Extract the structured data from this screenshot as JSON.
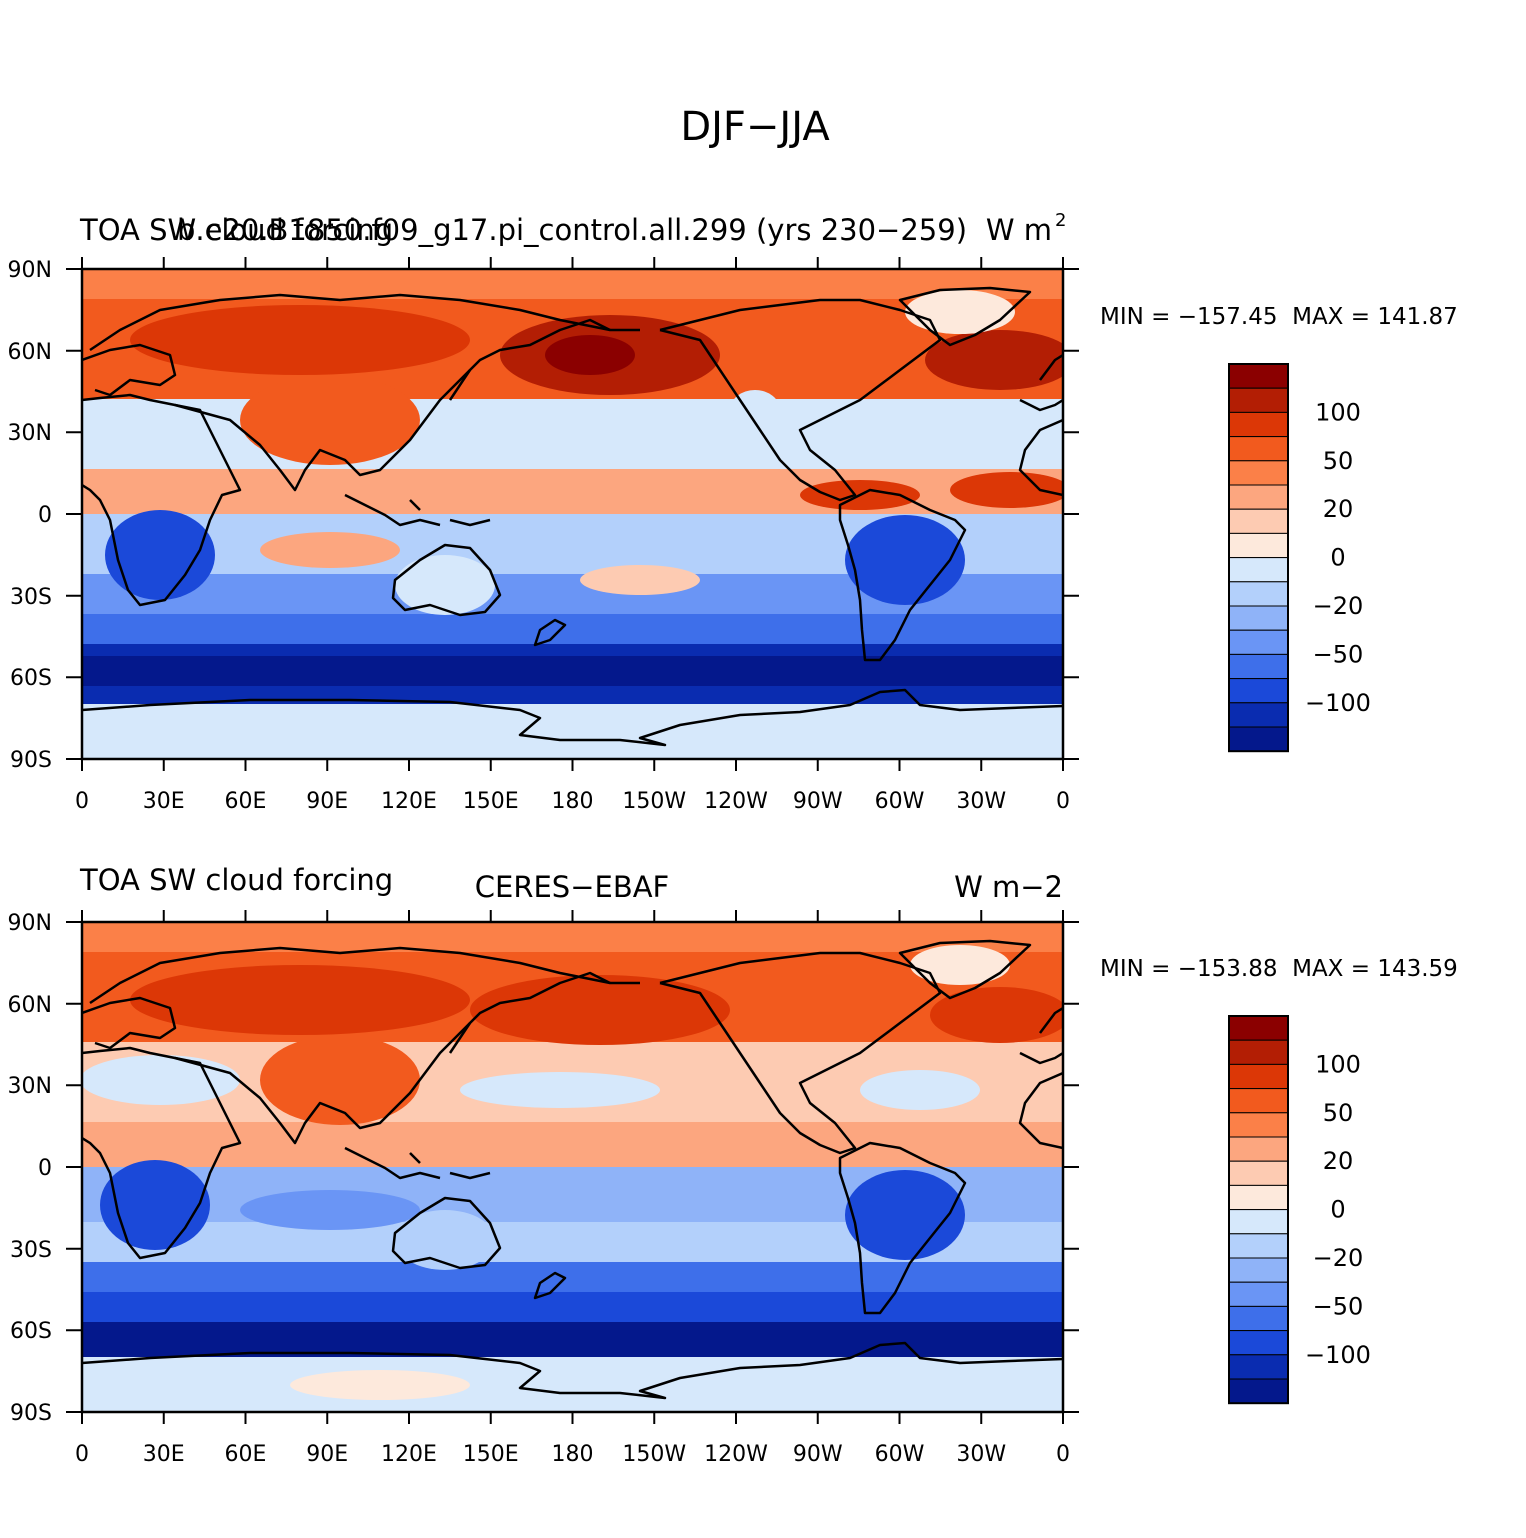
{
  "title": "DJF−JJA",
  "colorbar_levels": [
    -100,
    -50,
    -20,
    0,
    20,
    50,
    100
  ],
  "colorbar_labels": [
    "100",
    "50",
    "20",
    "0",
    "−20",
    "−50",
    "−100"
  ],
  "colors": {
    "palette_top_to_bottom": [
      "#8b0000",
      "#b31e04",
      "#dc3706",
      "#f25a1e",
      "#fb8048",
      "#fca67f",
      "#fdcbb2",
      "#fde9dc",
      "#d6e8fb",
      "#b3d0fb",
      "#8fb3f8",
      "#6a95f5",
      "#3e6fea",
      "#1b49d9",
      "#0a2cb0",
      "#04188c"
    ],
    "land_outline": "#000000"
  },
  "x_tick_labels": [
    "0",
    "30E",
    "60E",
    "90E",
    "120E",
    "150E",
    "180",
    "150W",
    "120W",
    "90W",
    "60W",
    "30W",
    "0"
  ],
  "y_tick_labels": [
    "90N",
    "60N",
    "30N",
    "0",
    "30S",
    "60S",
    "90S"
  ],
  "panels": [
    {
      "left_title": "TOA SW cloud forcing",
      "center_title": "b.e20.B1850.f09_g17.pi_control.all.299 (yrs 230−259)",
      "right_title": "W m",
      "right_title_sup": "2",
      "stats": "MIN = −157.45  MAX = 141.87"
    },
    {
      "left_title": "TOA SW cloud forcing",
      "center_title": "CERES−EBAF",
      "right_title": "W m−2",
      "right_title_sup": "",
      "stats": "MIN = −153.88  MAX = 143.59"
    }
  ]
}
